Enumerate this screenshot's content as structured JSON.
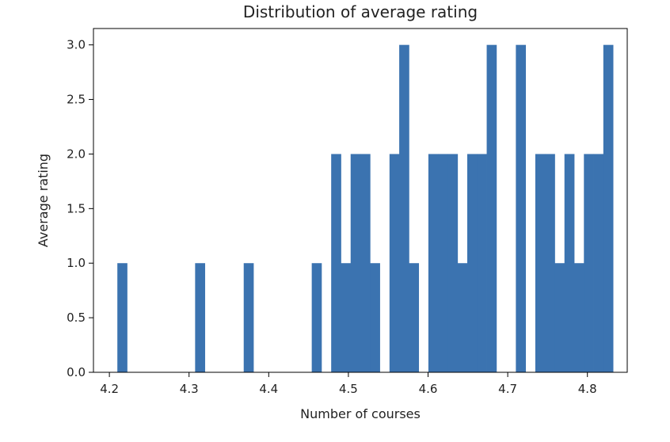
{
  "chart_data": {
    "type": "bar",
    "title": "Distribution of average rating",
    "xlabel": "Number of courses",
    "ylabel": "Average rating",
    "xlim": [
      4.18,
      4.85
    ],
    "ylim": [
      0,
      3.15
    ],
    "xticks": [
      "4.2",
      "4.3",
      "4.4",
      "4.5",
      "4.6",
      "4.7",
      "4.8"
    ],
    "xtick_values": [
      4.2,
      4.3,
      4.4,
      4.5,
      4.6,
      4.7,
      4.8
    ],
    "yticks": [
      "0.0",
      "0.5",
      "1.0",
      "1.5",
      "2.0",
      "2.5",
      "3.0"
    ],
    "ytick_values": [
      0,
      0.5,
      1.0,
      1.5,
      2.0,
      2.5,
      3.0
    ],
    "bin_start": 4.21,
    "bin_width": 0.0122,
    "values": [
      1,
      0,
      0,
      0,
      0,
      0,
      0,
      0,
      1,
      0,
      0,
      0,
      0,
      1,
      0,
      0,
      0,
      0,
      0,
      0,
      1,
      0,
      2,
      1,
      2,
      2,
      1,
      0,
      2,
      3,
      1,
      0,
      2,
      2,
      2,
      1,
      2,
      2,
      3,
      0,
      0,
      3,
      0,
      2,
      2,
      1,
      2,
      1,
      2,
      2,
      3
    ],
    "bar_color": "#3b73b0",
    "grid": false,
    "legend": "none"
  }
}
